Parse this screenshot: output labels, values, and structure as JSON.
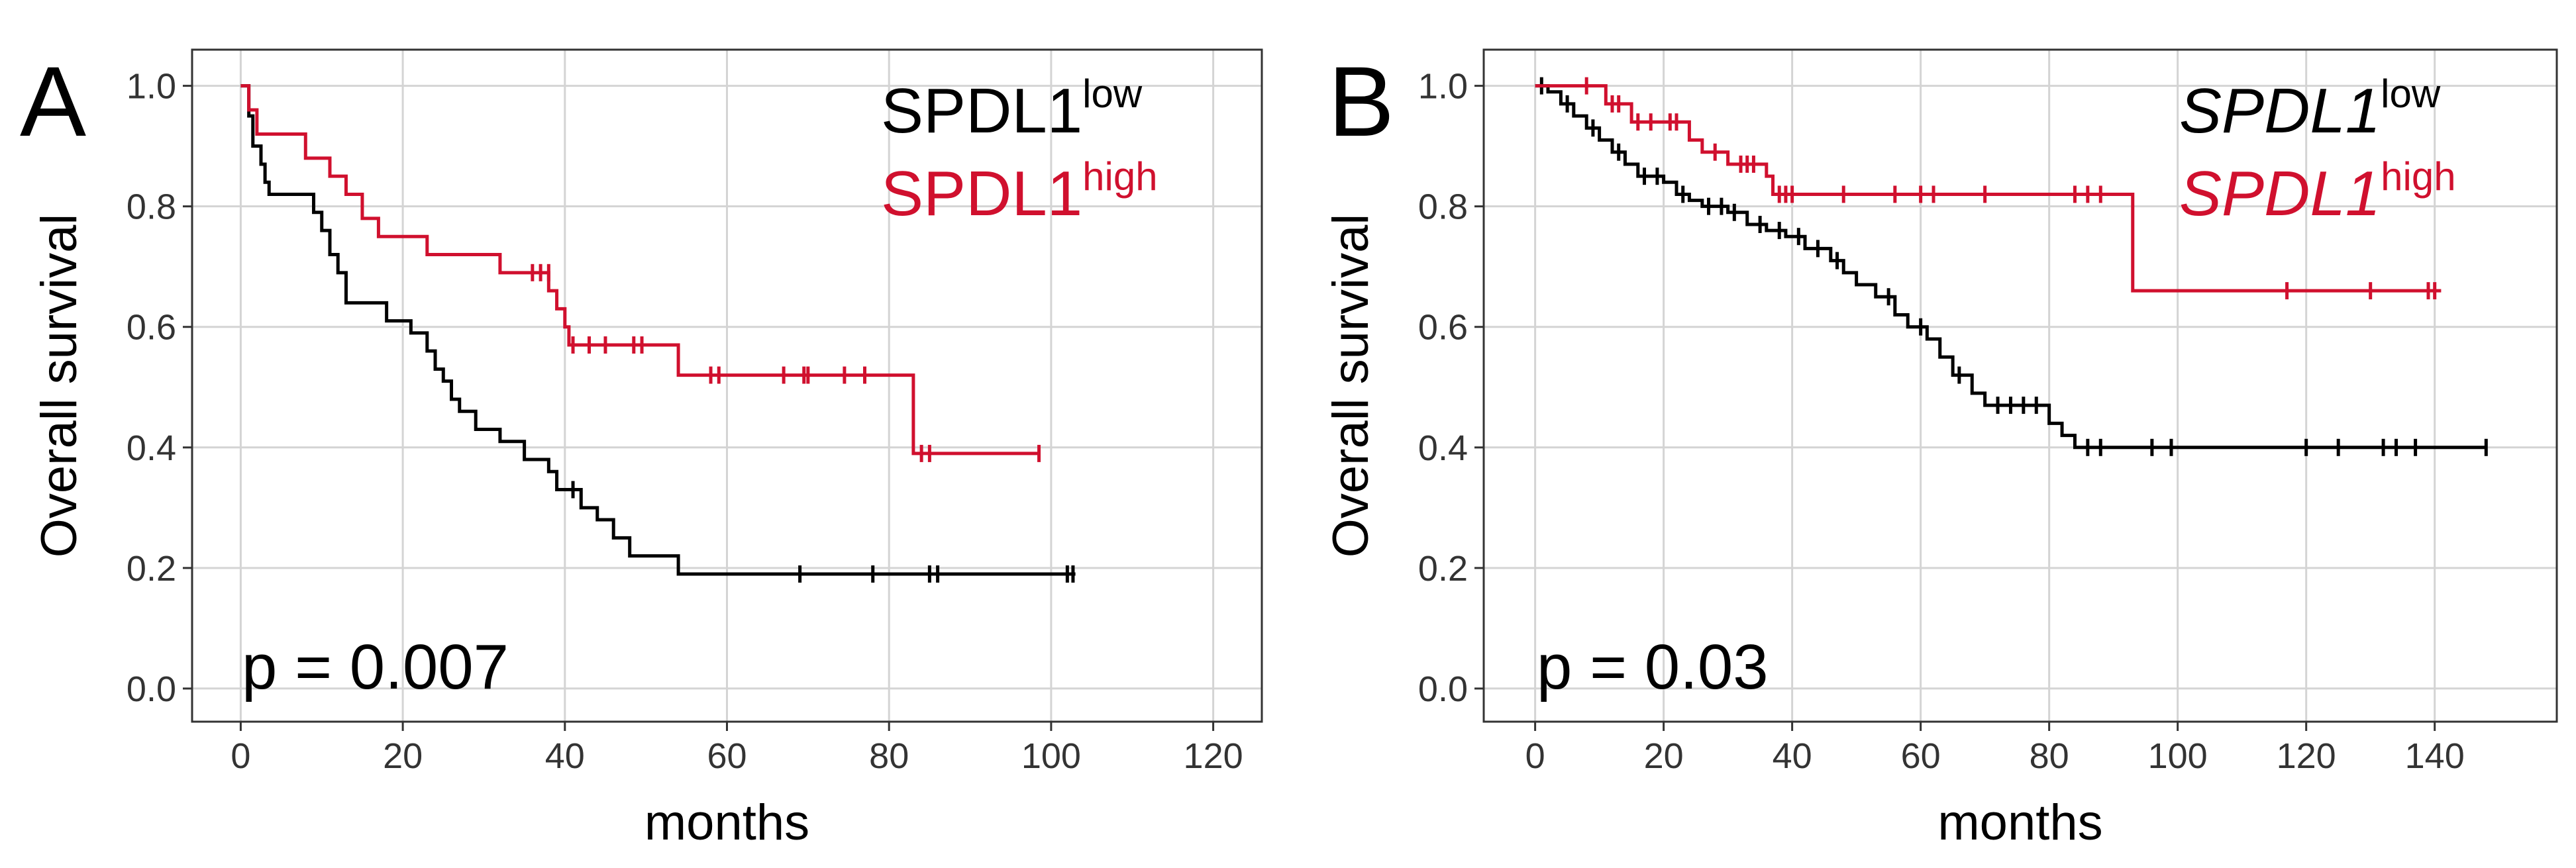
{
  "colors": {
    "low": "#000000",
    "high": "#d0102e",
    "grid": "#d4d4d4",
    "frame": "#333333"
  },
  "chart_data": [
    {
      "type": "line",
      "panel": "A",
      "title": "",
      "xlabel": "months",
      "ylabel": "Overall survival",
      "xlim": [
        -6,
        126
      ],
      "ylim": [
        -0.055,
        1.06
      ],
      "xticks": [
        "0",
        "20",
        "40",
        "60",
        "80",
        "100",
        "120"
      ],
      "xtick_values": [
        0,
        20,
        40,
        60,
        80,
        100,
        120
      ],
      "yticks": [
        "0.0",
        "0.2",
        "0.4",
        "0.6",
        "0.8",
        "1.0"
      ],
      "ytick_values": [
        0,
        0.2,
        0.4,
        0.6,
        0.8,
        1.0
      ],
      "legend": {
        "low_base": "SPDL1",
        "low_sup": "low",
        "high_base": "SPDL1",
        "high_sup": "high",
        "italic": false
      },
      "pvalue": "p = 0.007",
      "series": [
        {
          "name": "SPDL1 low",
          "key": "low",
          "steps": [
            [
              0,
              1.0
            ],
            [
              1,
              0.95
            ],
            [
              1.5,
              0.9
            ],
            [
              2.5,
              0.87
            ],
            [
              3,
              0.84
            ],
            [
              3.5,
              0.82
            ],
            [
              9,
              0.79
            ],
            [
              10,
              0.76
            ],
            [
              11,
              0.72
            ],
            [
              12,
              0.69
            ],
            [
              13,
              0.64
            ],
            [
              18,
              0.61
            ],
            [
              21,
              0.59
            ],
            [
              23,
              0.56
            ],
            [
              24,
              0.53
            ],
            [
              25,
              0.51
            ],
            [
              26,
              0.48
            ],
            [
              27,
              0.46
            ],
            [
              29,
              0.43
            ],
            [
              32,
              0.41
            ],
            [
              35,
              0.38
            ],
            [
              38,
              0.36
            ],
            [
              39,
              0.33
            ],
            [
              42,
              0.3
            ],
            [
              44,
              0.28
            ],
            [
              46,
              0.25
            ],
            [
              48,
              0.22
            ],
            [
              54,
              0.19
            ],
            [
              103,
              0.19
            ]
          ],
          "censors": [
            [
              41,
              0.33
            ],
            [
              69,
              0.19
            ],
            [
              78,
              0.19
            ],
            [
              85,
              0.19
            ],
            [
              86,
              0.19
            ],
            [
              102,
              0.19
            ],
            [
              102.7,
              0.19
            ]
          ]
        },
        {
          "name": "SPDL1 high",
          "key": "high",
          "steps": [
            [
              0,
              1.0
            ],
            [
              1,
              0.96
            ],
            [
              2,
              0.92
            ],
            [
              8,
              0.88
            ],
            [
              11,
              0.85
            ],
            [
              13,
              0.82
            ],
            [
              15,
              0.78
            ],
            [
              17,
              0.75
            ],
            [
              23,
              0.72
            ],
            [
              32,
              0.69
            ],
            [
              38,
              0.66
            ],
            [
              39,
              0.63
            ],
            [
              40,
              0.6
            ],
            [
              40.5,
              0.57
            ],
            [
              54,
              0.52
            ],
            [
              83,
              0.39
            ],
            [
              98.5,
              0.39
            ]
          ],
          "censors": [
            [
              36,
              0.69
            ],
            [
              37,
              0.69
            ],
            [
              38,
              0.69
            ],
            [
              41,
              0.57
            ],
            [
              43,
              0.57
            ],
            [
              45,
              0.57
            ],
            [
              48.5,
              0.57
            ],
            [
              49.5,
              0.57
            ],
            [
              58,
              0.52
            ],
            [
              59,
              0.52
            ],
            [
              67,
              0.52
            ],
            [
              69.5,
              0.52
            ],
            [
              70,
              0.52
            ],
            [
              74.5,
              0.52
            ],
            [
              77,
              0.52
            ],
            [
              84,
              0.39
            ],
            [
              85,
              0.39
            ],
            [
              98.5,
              0.39
            ]
          ]
        }
      ]
    },
    {
      "type": "line",
      "panel": "B",
      "title": "",
      "xlabel": "months",
      "ylabel": "Overall survival",
      "xlim": [
        -8,
        159
      ],
      "ylim": [
        -0.055,
        1.06
      ],
      "xticks": [
        "0",
        "20",
        "40",
        "60",
        "80",
        "100",
        "120",
        "140"
      ],
      "xtick_values": [
        0,
        20,
        40,
        60,
        80,
        100,
        120,
        140
      ],
      "yticks": [
        "0.0",
        "0.2",
        "0.4",
        "0.6",
        "0.8",
        "1.0"
      ],
      "ytick_values": [
        0,
        0.2,
        0.4,
        0.6,
        0.8,
        1.0
      ],
      "legend": {
        "low_base": "SPDL1",
        "low_sup": "low",
        "high_base": "SPDL1",
        "high_sup": "high",
        "italic": true
      },
      "pvalue": "p = 0.03",
      "series": [
        {
          "name": "SPDL1 low",
          "key": "low",
          "steps": [
            [
              0,
              1.0
            ],
            [
              2,
              0.99
            ],
            [
              4,
              0.97
            ],
            [
              6,
              0.95
            ],
            [
              8,
              0.93
            ],
            [
              10,
              0.91
            ],
            [
              12,
              0.89
            ],
            [
              14,
              0.87
            ],
            [
              16,
              0.85
            ],
            [
              20,
              0.84
            ],
            [
              22,
              0.82
            ],
            [
              24,
              0.81
            ],
            [
              26,
              0.8
            ],
            [
              30,
              0.79
            ],
            [
              33,
              0.77
            ],
            [
              36,
              0.76
            ],
            [
              39,
              0.75
            ],
            [
              42,
              0.73
            ],
            [
              46,
              0.71
            ],
            [
              48,
              0.69
            ],
            [
              50,
              0.67
            ],
            [
              53,
              0.65
            ],
            [
              56,
              0.62
            ],
            [
              58,
              0.6
            ],
            [
              61,
              0.58
            ],
            [
              63,
              0.55
            ],
            [
              65,
              0.52
            ],
            [
              68,
              0.49
            ],
            [
              70,
              0.47
            ],
            [
              80,
              0.44
            ],
            [
              82,
              0.42
            ],
            [
              84,
              0.4
            ],
            [
              148,
              0.4
            ]
          ],
          "censors": [
            [
              1,
              1.0
            ],
            [
              5,
              0.97
            ],
            [
              9,
              0.93
            ],
            [
              13,
              0.89
            ],
            [
              17,
              0.85
            ],
            [
              19,
              0.85
            ],
            [
              23,
              0.82
            ],
            [
              27,
              0.8
            ],
            [
              29,
              0.8
            ],
            [
              31,
              0.79
            ],
            [
              35,
              0.77
            ],
            [
              38,
              0.76
            ],
            [
              41,
              0.75
            ],
            [
              44,
              0.73
            ],
            [
              47,
              0.71
            ],
            [
              55,
              0.65
            ],
            [
              60,
              0.6
            ],
            [
              66,
              0.52
            ],
            [
              72,
              0.47
            ],
            [
              74,
              0.47
            ],
            [
              76,
              0.47
            ],
            [
              78,
              0.47
            ],
            [
              86,
              0.4
            ],
            [
              88,
              0.4
            ],
            [
              96,
              0.4
            ],
            [
              99,
              0.4
            ],
            [
              120,
              0.4
            ],
            [
              125,
              0.4
            ],
            [
              132,
              0.4
            ],
            [
              134,
              0.4
            ],
            [
              137,
              0.4
            ],
            [
              148,
              0.4
            ]
          ]
        },
        {
          "name": "SPDL1 high",
          "key": "high",
          "steps": [
            [
              0,
              1.0
            ],
            [
              11,
              0.97
            ],
            [
              15,
              0.94
            ],
            [
              24,
              0.91
            ],
            [
              26,
              0.89
            ],
            [
              30,
              0.87
            ],
            [
              36,
              0.85
            ],
            [
              37,
              0.82
            ],
            [
              93,
              0.66
            ],
            [
              141,
              0.66
            ]
          ],
          "censors": [
            [
              8,
              1.0
            ],
            [
              12,
              0.97
            ],
            [
              13,
              0.97
            ],
            [
              16,
              0.94
            ],
            [
              18,
              0.94
            ],
            [
              21,
              0.94
            ],
            [
              22,
              0.94
            ],
            [
              28,
              0.89
            ],
            [
              32,
              0.87
            ],
            [
              33,
              0.87
            ],
            [
              34,
              0.87
            ],
            [
              38,
              0.82
            ],
            [
              39,
              0.82
            ],
            [
              40,
              0.82
            ],
            [
              48,
              0.82
            ],
            [
              56,
              0.82
            ],
            [
              60,
              0.82
            ],
            [
              62,
              0.82
            ],
            [
              70,
              0.82
            ],
            [
              84,
              0.82
            ],
            [
              86,
              0.82
            ],
            [
              88,
              0.82
            ],
            [
              117,
              0.66
            ],
            [
              130,
              0.66
            ],
            [
              139,
              0.66
            ],
            [
              140,
              0.66
            ]
          ]
        }
      ]
    }
  ]
}
